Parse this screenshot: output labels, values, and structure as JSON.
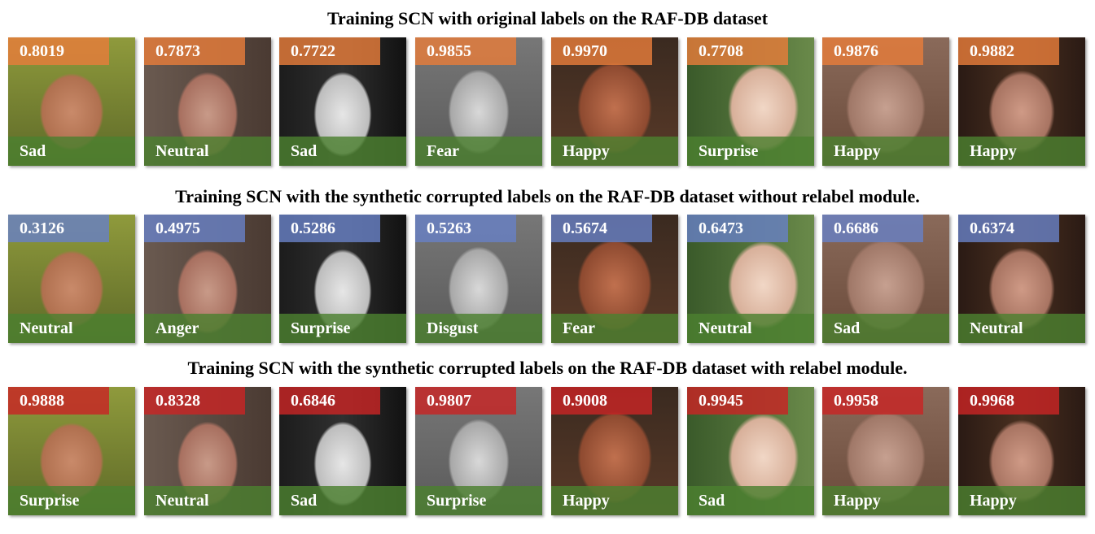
{
  "rows": [
    {
      "title": "Training SCN with original labels on the RAF-DB dataset",
      "tiles": [
        {
          "score": "0.8019",
          "label": "Sad"
        },
        {
          "score": "0.7873",
          "label": "Neutral"
        },
        {
          "score": "0.7722",
          "label": "Sad"
        },
        {
          "score": "0.9855",
          "label": "Fear"
        },
        {
          "score": "0.9970",
          "label": "Happy"
        },
        {
          "score": "0.7708",
          "label": "Surprise"
        },
        {
          "score": "0.9876",
          "label": "Happy"
        },
        {
          "score": "0.9882",
          "label": "Happy"
        }
      ]
    },
    {
      "title": "Training SCN with the synthetic corrupted labels on the RAF-DB dataset without relabel module.",
      "tiles": [
        {
          "score": "0.3126",
          "label": "Neutral"
        },
        {
          "score": "0.4975",
          "label": "Anger"
        },
        {
          "score": "0.5286",
          "label": "Surprise"
        },
        {
          "score": "0.5263",
          "label": "Disgust"
        },
        {
          "score": "0.5674",
          "label": "Fear"
        },
        {
          "score": "0.6473",
          "label": "Neutral"
        },
        {
          "score": "0.6686",
          "label": "Sad"
        },
        {
          "score": "0.6374",
          "label": "Neutral"
        }
      ]
    },
    {
      "title": "Training SCN with the synthetic corrupted labels on the RAF-DB dataset with relabel module.",
      "tiles": [
        {
          "score": "0.9888",
          "label": "Surprise"
        },
        {
          "score": "0.8328",
          "label": "Neutral"
        },
        {
          "score": "0.6846",
          "label": "Sad"
        },
        {
          "score": "0.9807",
          "label": "Surprise"
        },
        {
          "score": "0.9008",
          "label": "Happy"
        },
        {
          "score": "0.9945",
          "label": "Sad"
        },
        {
          "score": "0.9958",
          "label": "Happy"
        },
        {
          "score": "0.9968",
          "label": "Happy"
        }
      ]
    }
  ],
  "colors": {
    "score_row1": "#e67d3a",
    "score_row2": "#6880c4",
    "score_row3": "#c82424",
    "label_band": "#4c8030"
  }
}
